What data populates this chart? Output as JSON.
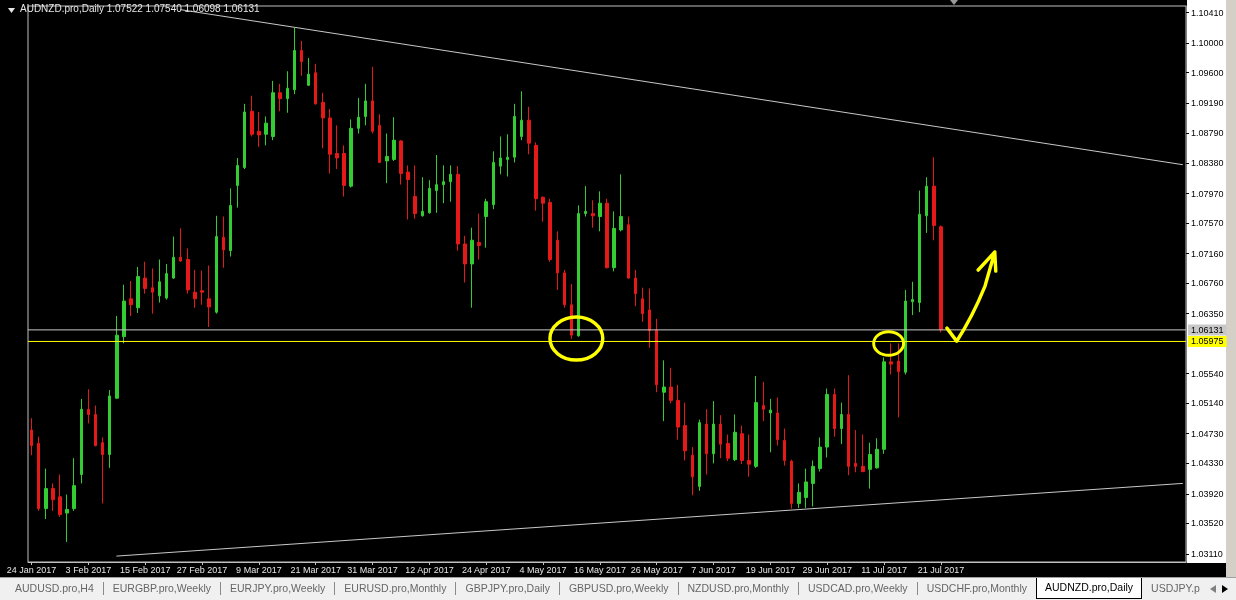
{
  "chart_data": {
    "type": "candlestick",
    "title": "AUDNZD.pro,Daily 1.07522 1.07540 1.06098 1.06131",
    "categories": [
      "24 Jan 2017",
      null,
      null,
      null,
      null,
      null,
      null,
      null,
      "3 Feb 2017",
      null,
      null,
      null,
      null,
      null,
      null,
      null,
      "15 Feb 2017",
      null,
      null,
      null,
      null,
      null,
      null,
      null,
      "27 Feb 2017",
      null,
      null,
      null,
      null,
      null,
      null,
      null,
      "9 Mar 2017",
      null,
      null,
      null,
      null,
      null,
      null,
      null,
      "21 Mar 2017",
      null,
      null,
      null,
      null,
      null,
      null,
      null,
      "31 Mar 2017",
      null,
      null,
      null,
      null,
      null,
      null,
      null,
      "12 Apr 2017",
      null,
      null,
      null,
      null,
      null,
      null,
      null,
      "24 Apr 2017",
      null,
      null,
      null,
      null,
      null,
      null,
      null,
      "4 May 2017",
      null,
      null,
      null,
      null,
      null,
      null,
      null,
      "16 May 2017",
      null,
      null,
      null,
      null,
      null,
      null,
      null,
      "26 May 2017",
      null,
      null,
      null,
      null,
      null,
      null,
      null,
      "7 Jun 2017",
      null,
      null,
      null,
      null,
      null,
      null,
      null,
      "19 Jun 2017",
      null,
      null,
      null,
      null,
      null,
      null,
      null,
      "29 Jun 2017",
      null,
      null,
      null,
      null,
      null,
      null,
      null,
      "11 Jul 2017",
      null,
      null,
      null,
      null,
      null,
      null,
      null,
      "21 Jul 2017",
      null,
      null,
      null,
      null,
      null,
      null,
      null,
      null,
      null,
      null,
      null,
      null,
      null,
      null,
      null,
      null,
      null,
      null,
      null,
      null,
      null,
      null,
      null,
      null,
      null,
      null,
      null,
      null,
      null,
      null,
      null,
      null,
      null,
      null
    ],
    "ohlc": [
      [
        1.0478,
        1.0494,
        1.0444,
        1.0457
      ],
      [
        1.046,
        1.0469,
        1.0369,
        1.0372
      ],
      [
        1.0372,
        1.0426,
        1.0358,
        1.0399
      ],
      [
        1.0399,
        1.0406,
        1.0369,
        1.0384
      ],
      [
        1.0388,
        1.0418,
        1.0361,
        1.0364
      ],
      [
        1.0366,
        1.0391,
        1.0327,
        1.0371
      ],
      [
        1.0372,
        1.044,
        1.0369,
        1.0403
      ],
      [
        1.0418,
        1.052,
        1.0406,
        1.0506
      ],
      [
        1.0506,
        1.0533,
        1.0487,
        1.0499
      ],
      [
        1.0499,
        1.0511,
        1.0456,
        1.0457
      ],
      [
        1.0461,
        1.0468,
        1.0379,
        1.0445
      ],
      [
        1.0445,
        1.0532,
        1.0427,
        1.0524
      ],
      [
        1.0521,
        1.0632,
        1.052,
        1.0606
      ],
      [
        1.0604,
        1.0674,
        1.0595,
        1.0652
      ],
      [
        1.0655,
        1.0679,
        1.0632,
        1.0647
      ],
      [
        1.0643,
        1.0698,
        1.0636,
        1.0685
      ],
      [
        1.0683,
        1.0705,
        1.0662,
        1.0669
      ],
      [
        1.067,
        1.0696,
        1.0635,
        1.0664
      ],
      [
        1.0659,
        1.0708,
        1.065,
        1.0678
      ],
      [
        1.0656,
        1.0702,
        1.0654,
        1.0689
      ],
      [
        1.0683,
        1.0739,
        1.0682,
        1.0711
      ],
      [
        1.0711,
        1.075,
        1.0705,
        1.0706
      ],
      [
        1.0708,
        1.0723,
        1.0662,
        1.0667
      ],
      [
        1.0664,
        1.0694,
        1.0643,
        1.0655
      ],
      [
        1.0666,
        1.0693,
        1.0647,
        1.0664
      ],
      [
        1.0655,
        1.07,
        1.0617,
        1.0644
      ],
      [
        1.0637,
        1.0767,
        1.0635,
        1.0739
      ],
      [
        1.0738,
        1.0766,
        1.0697,
        1.0721
      ],
      [
        1.072,
        1.0804,
        1.0712,
        1.0781
      ],
      [
        1.0808,
        1.0845,
        1.0778,
        1.0835
      ],
      [
        1.0832,
        1.0918,
        1.083,
        1.0907
      ],
      [
        1.0908,
        1.0929,
        1.0874,
        1.0877
      ],
      [
        1.0881,
        1.0907,
        1.086,
        1.0876
      ],
      [
        1.0877,
        1.0901,
        1.0862,
        1.0892
      ],
      [
        1.0874,
        1.0949,
        1.0869,
        1.0933
      ],
      [
        1.0933,
        1.0945,
        1.0908,
        1.0925
      ],
      [
        1.0925,
        1.0962,
        1.0906,
        1.0939
      ],
      [
        1.0937,
        1.1021,
        1.0931,
        1.099
      ],
      [
        1.099,
        1.1003,
        1.0956,
        1.0975
      ],
      [
        1.0943,
        1.098,
        1.0942,
        1.0958
      ],
      [
        1.096,
        1.0972,
        1.0917,
        1.0918
      ],
      [
        1.092,
        1.0933,
        1.0858,
        1.0899
      ],
      [
        1.0899,
        1.0911,
        1.0824,
        1.085
      ],
      [
        1.0851,
        1.0889,
        1.083,
        1.0845
      ],
      [
        1.0851,
        1.0862,
        1.0793,
        1.0808
      ],
      [
        1.0807,
        1.0897,
        1.0805,
        1.0885
      ],
      [
        1.0885,
        1.0926,
        1.0878,
        1.09
      ],
      [
        1.0901,
        1.0945,
        1.0889,
        1.0922
      ],
      [
        1.0922,
        1.0968,
        1.0878,
        1.0881
      ],
      [
        1.0889,
        1.0904,
        1.0838,
        1.0839
      ],
      [
        1.0841,
        1.0878,
        1.0811,
        1.0847
      ],
      [
        1.0843,
        1.09,
        1.0841,
        1.0869
      ],
      [
        1.0868,
        1.0869,
        1.0809,
        1.0824
      ],
      [
        1.0826,
        1.0835,
        1.0762,
        1.0816
      ],
      [
        1.0793,
        1.0835,
        1.0763,
        1.077
      ],
      [
        1.0767,
        1.0819,
        1.0766,
        1.0773
      ],
      [
        1.0771,
        1.0815,
        1.077,
        1.0804
      ],
      [
        1.0801,
        1.0849,
        1.0771,
        1.0809
      ],
      [
        1.0809,
        1.0835,
        1.0784,
        1.0813
      ],
      [
        1.0813,
        1.0835,
        1.0786,
        1.0823
      ],
      [
        1.0823,
        1.0834,
        1.072,
        1.0729
      ],
      [
        1.0729,
        1.074,
        1.0677,
        1.0702
      ],
      [
        1.0702,
        1.0751,
        1.0643,
        1.0734
      ],
      [
        1.0731,
        1.077,
        1.0708,
        1.0727
      ],
      [
        1.0766,
        1.079,
        1.0724,
        1.0786
      ],
      [
        1.0782,
        1.0854,
        1.0776,
        1.0839
      ],
      [
        1.0834,
        1.0874,
        1.0823,
        1.0845
      ],
      [
        1.0843,
        1.0877,
        1.082,
        1.0846
      ],
      [
        1.0846,
        1.0918,
        1.0839,
        1.0901
      ],
      [
        1.0874,
        1.0935,
        1.0869,
        1.0896
      ],
      [
        1.0896,
        1.0914,
        1.085,
        1.0865
      ],
      [
        1.0862,
        1.0866,
        1.0774,
        1.079
      ],
      [
        1.0792,
        1.0793,
        1.0759,
        1.0784
      ],
      [
        1.0785,
        1.079,
        1.0705,
        1.0708
      ],
      [
        1.0734,
        1.0746,
        1.0667,
        1.069
      ],
      [
        1.069,
        1.0694,
        1.0643,
        1.0647
      ],
      [
        1.0647,
        1.0675,
        1.0601,
        1.0606
      ],
      [
        1.0605,
        1.0781,
        1.0604,
        1.077
      ],
      [
        1.077,
        1.0807,
        1.0766,
        1.0773
      ],
      [
        1.077,
        1.0788,
        1.0751,
        1.0767
      ],
      [
        1.0766,
        1.08,
        1.0746,
        1.0784
      ],
      [
        1.0784,
        1.079,
        1.0696,
        1.0697
      ],
      [
        1.0697,
        1.0773,
        1.0692,
        1.075
      ],
      [
        1.0748,
        1.0823,
        1.0746,
        1.0766
      ],
      [
        1.0755,
        1.0766,
        1.0682,
        1.0683
      ],
      [
        1.0683,
        1.0694,
        1.0645,
        1.0662
      ],
      [
        1.0655,
        1.067,
        1.0624,
        1.0635
      ],
      [
        1.064,
        1.0669,
        1.0589,
        1.0612
      ],
      [
        1.0613,
        1.0628,
        1.0529,
        1.0539
      ],
      [
        1.0529,
        1.0572,
        1.049,
        1.0536
      ],
      [
        1.0536,
        1.0562,
        1.0514,
        1.0518
      ],
      [
        1.0518,
        1.0539,
        1.0465,
        1.0482
      ],
      [
        1.0484,
        1.0515,
        1.0437,
        1.045
      ],
      [
        1.0444,
        1.0455,
        1.039,
        1.0415
      ],
      [
        1.0402,
        1.0492,
        1.0396,
        1.0488
      ],
      [
        1.0486,
        1.0506,
        1.0418,
        1.0446
      ],
      [
        1.0446,
        1.0517,
        1.0433,
        1.0486
      ],
      [
        1.0486,
        1.0498,
        1.044,
        1.0459
      ],
      [
        1.046,
        1.0472,
        1.0436,
        1.044
      ],
      [
        1.0438,
        1.0499,
        1.0436,
        1.0475
      ],
      [
        1.0473,
        1.0484,
        1.0432,
        1.0437
      ],
      [
        1.0437,
        1.0472,
        1.0415,
        1.0432
      ],
      [
        1.0429,
        1.0551,
        1.0427,
        1.0515
      ],
      [
        1.0511,
        1.0543,
        1.049,
        1.0506
      ],
      [
        1.0501,
        1.052,
        1.0448,
        1.0505
      ],
      [
        1.0501,
        1.0522,
        1.0457,
        1.0465
      ],
      [
        1.0464,
        1.048,
        1.043,
        1.0437
      ],
      [
        1.0436,
        1.0438,
        1.0372,
        1.0379
      ],
      [
        1.0379,
        1.0406,
        1.0373,
        1.0394
      ],
      [
        1.0387,
        1.0426,
        1.0373,
        1.0408
      ],
      [
        1.0406,
        1.0437,
        1.0375,
        1.0429
      ],
      [
        1.0426,
        1.0468,
        1.0422,
        1.0455
      ],
      [
        1.0455,
        1.0534,
        1.0441,
        1.0526
      ],
      [
        1.0526,
        1.0534,
        1.0469,
        1.048
      ],
      [
        1.048,
        1.0515,
        1.0459,
        1.0499
      ],
      [
        1.0499,
        1.0552,
        1.0417,
        1.0429
      ],
      [
        1.0433,
        1.0478,
        1.0421,
        1.0429
      ],
      [
        1.0429,
        1.0472,
        1.0421,
        1.0422
      ],
      [
        1.0425,
        1.0461,
        1.0399,
        1.0445
      ],
      [
        1.0427,
        1.0467,
        1.0426,
        1.0452
      ],
      [
        1.0452,
        1.0576,
        1.0446,
        1.057
      ],
      [
        1.057,
        1.0595,
        1.0553,
        1.0567
      ],
      [
        1.0571,
        1.0595,
        1.0495,
        1.0557
      ],
      [
        1.0556,
        1.0667,
        1.0553,
        1.0652
      ],
      [
        1.0651,
        1.0678,
        1.0633,
        1.0654
      ],
      [
        1.065,
        1.0801,
        1.0637,
        1.0769
      ],
      [
        1.0767,
        1.0819,
        1.0744,
        1.0807
      ],
      [
        1.0807,
        1.0846,
        1.0734,
        1.0754
      ],
      [
        1.07522,
        1.0754,
        1.06098,
        1.06131
      ],
      null,
      null,
      null,
      null,
      null,
      null,
      null,
      null,
      null,
      null,
      null,
      null,
      null,
      null,
      null,
      null,
      null,
      null,
      null,
      null,
      null,
      null,
      null,
      null,
      null,
      null,
      null,
      null,
      null,
      null,
      null,
      null,
      null,
      null
    ],
    "colors": [
      "#e61919",
      "#e61919",
      "#33cc33",
      "#e61919",
      "#e61919",
      "#33cc33",
      "#33cc33",
      "#33cc33",
      "#e61919",
      "#e61919",
      "#e61919",
      "#33cc33",
      "#33cc33",
      "#33cc33",
      "#e61919",
      "#33cc33",
      "#e61919",
      "#e61919",
      "#33cc33",
      "#33cc33",
      "#33cc33",
      "#e61919",
      "#e61919",
      "#e61919",
      "#e61919",
      "#e61919",
      "#33cc33",
      "#e61919",
      "#33cc33",
      "#33cc33",
      "#33cc33",
      "#e61919",
      "#e61919",
      "#33cc33",
      "#33cc33",
      "#e61919",
      "#33cc33",
      "#33cc33",
      "#e61919",
      "#33cc33",
      "#e61919",
      "#e61919",
      "#e61919",
      "#e61919",
      "#e61919",
      "#33cc33",
      "#33cc33",
      "#33cc33",
      "#e61919",
      "#e61919",
      "#33cc33",
      "#33cc33",
      "#e61919",
      "#e61919",
      "#e61919",
      "#33cc33",
      "#33cc33",
      "#33cc33",
      "#33cc33",
      "#33cc33",
      "#e61919",
      "#e61919",
      "#33cc33",
      "#e61919",
      "#33cc33",
      "#33cc33",
      "#33cc33",
      "#33cc33",
      "#33cc33",
      "#33cc33",
      "#e61919",
      "#e61919",
      "#e61919",
      "#e61919",
      "#e61919",
      "#e61919",
      "#e61919",
      "#33cc33",
      "#33cc33",
      "#e61919",
      "#33cc33",
      "#e61919",
      "#33cc33",
      "#33cc33",
      "#e61919",
      "#e61919",
      "#e61919",
      "#e61919",
      "#e61919",
      "#33cc33",
      "#e61919",
      "#e61919",
      "#e61919",
      "#e61919",
      "#33cc33",
      "#e61919",
      "#33cc33",
      "#e61919",
      "#e61919",
      "#33cc33",
      "#e61919",
      "#e61919",
      "#33cc33",
      "#e61919",
      "#33cc33",
      "#e61919",
      "#e61919",
      "#e61919",
      "#33cc33",
      "#33cc33",
      "#33cc33",
      "#33cc33",
      "#33cc33",
      "#e61919",
      "#33cc33",
      "#e61919",
      "#e61919",
      "#e61919",
      "#33cc33",
      "#33cc33",
      "#33cc33",
      "#e61919",
      "#e61919",
      "#33cc33",
      "#33cc33",
      "#33cc33",
      "#33cc33",
      "#e61919",
      "#e61919",
      null,
      null,
      null,
      null,
      null,
      null,
      null,
      null,
      null,
      null,
      null,
      null,
      null,
      null,
      null,
      null,
      null,
      null,
      null,
      null,
      null,
      null,
      null,
      null,
      null,
      null,
      null,
      null,
      null,
      null,
      null,
      null,
      null,
      null
    ],
    "series": [
      {
        "type": "line",
        "color": "#c8c8c8",
        "values": [
          null,
          null,
          null,
          null,
          null,
          null,
          null,
          null,
          null,
          null,
          null,
          null,
          null,
          null,
          null,
          null,
          null,
          null,
          null,
          null,
          null,
          1.1045,
          null,
          null,
          null,
          null,
          null,
          null,
          null,
          null,
          null,
          null,
          null,
          null,
          null,
          null,
          null,
          null,
          null,
          null,
          null,
          null,
          null,
          null,
          null,
          null,
          null,
          null,
          null,
          null,
          null,
          null,
          null,
          null,
          null,
          null,
          null,
          null,
          null,
          null,
          null,
          null,
          null,
          null,
          null,
          null,
          null,
          null,
          null,
          null,
          null,
          null,
          null,
          null,
          null,
          null,
          null,
          null,
          null,
          null,
          null,
          null,
          null,
          null,
          null,
          null,
          null,
          null,
          null,
          null,
          null,
          null,
          null,
          null,
          null,
          null,
          null,
          null,
          null,
          null,
          null,
          null,
          null,
          null,
          null,
          null,
          null,
          null,
          null,
          null,
          null,
          null,
          null,
          null,
          null,
          null,
          null,
          null,
          null,
          null,
          null,
          null,
          null,
          null,
          null,
          null,
          null,
          null,
          null,
          null,
          null,
          null,
          null,
          null,
          null,
          null,
          null,
          null,
          null,
          null,
          null,
          null,
          null,
          null,
          null,
          null,
          null,
          null,
          null,
          null,
          null,
          null,
          null,
          null,
          null,
          null,
          null,
          null,
          null,
          null,
          null,
          null,
          1.0836
        ]
      },
      {
        "type": "line",
        "color": "#c8c8c8",
        "values": [
          null,
          null,
          null,
          null,
          null,
          null,
          null,
          null,
          null,
          null,
          null,
          null,
          1.0308,
          null,
          null,
          null,
          null,
          null,
          null,
          null,
          null,
          null,
          null,
          null,
          null,
          null,
          null,
          null,
          null,
          null,
          null,
          null,
          null,
          null,
          null,
          null,
          null,
          null,
          null,
          null,
          null,
          null,
          null,
          null,
          null,
          null,
          null,
          null,
          null,
          null,
          null,
          null,
          null,
          null,
          null,
          null,
          null,
          null,
          null,
          null,
          null,
          null,
          null,
          null,
          null,
          null,
          null,
          null,
          null,
          null,
          null,
          null,
          null,
          null,
          null,
          null,
          null,
          null,
          null,
          null,
          null,
          null,
          null,
          null,
          null,
          null,
          null,
          null,
          null,
          null,
          null,
          null,
          null,
          null,
          null,
          null,
          null,
          null,
          null,
          null,
          null,
          null,
          null,
          null,
          null,
          null,
          null,
          null,
          null,
          null,
          null,
          null,
          null,
          null,
          null,
          null,
          null,
          null,
          null,
          null,
          null,
          null,
          null,
          null,
          null,
          null,
          null,
          null,
          null,
          null,
          null,
          null,
          null,
          null,
          null,
          null,
          null,
          null,
          null,
          null,
          null,
          null,
          null,
          null,
          null,
          null,
          null,
          null,
          null,
          null,
          null,
          null,
          null,
          null,
          null,
          null,
          null,
          null,
          null,
          null,
          null,
          null,
          1.0406
        ]
      }
    ],
    "marker": "none",
    "ylim": [
      1.03,
      1.105
    ],
    "yticks": [
      {
        "value": 1.0311,
        "label": "1.03110"
      },
      {
        "value": 1.0352,
        "label": "1.03520"
      },
      {
        "value": 1.0392,
        "label": "1.03920"
      },
      {
        "value": 1.0433,
        "label": "1.04330"
      },
      {
        "value": 1.0473,
        "label": "1.04730"
      },
      {
        "value": 1.0514,
        "label": "1.05140"
      },
      {
        "value": 1.0554,
        "label": "1.05540"
      },
      {
        "value": 1.0635,
        "label": "1.06350"
      },
      {
        "value": 1.0676,
        "label": "1.06760"
      },
      {
        "value": 1.0716,
        "label": "1.07160"
      },
      {
        "value": 1.0757,
        "label": "1.07570"
      },
      {
        "value": 1.0797,
        "label": "1.07970"
      },
      {
        "value": 1.0838,
        "label": "1.08380"
      },
      {
        "value": 1.0879,
        "label": "1.08790"
      },
      {
        "value": 1.0919,
        "label": "1.09190"
      },
      {
        "value": 1.096,
        "label": "1.09600"
      },
      {
        "value": 1.1,
        "label": "1.10000"
      },
      {
        "value": 1.1041,
        "label": "1.10410"
      }
    ],
    "ref_lines": [
      {
        "axis": "y",
        "value": 1.06131,
        "label": "1.06131",
        "color": "#c8c8c8"
      },
      {
        "axis": "y",
        "value": 1.05975,
        "label": "1.05975",
        "color": "#ffff00"
      }
    ],
    "annotations": [
      "AUDUSD.pro,H4",
      "EURGBP.pro,Weekly",
      "EURJPY.pro,Weekly",
      "EURUSD.pro,Monthly",
      "GBPJPY.pro,Daily",
      "GBPUSD.pro,Weekly",
      "NZDUSD.pro,Monthly",
      "USDCAD.pro,Weekly",
      "USDCHF.pro,Monthly",
      "AUDNZD.pro,Daily",
      "USDJPY.p"
    ]
  }
}
